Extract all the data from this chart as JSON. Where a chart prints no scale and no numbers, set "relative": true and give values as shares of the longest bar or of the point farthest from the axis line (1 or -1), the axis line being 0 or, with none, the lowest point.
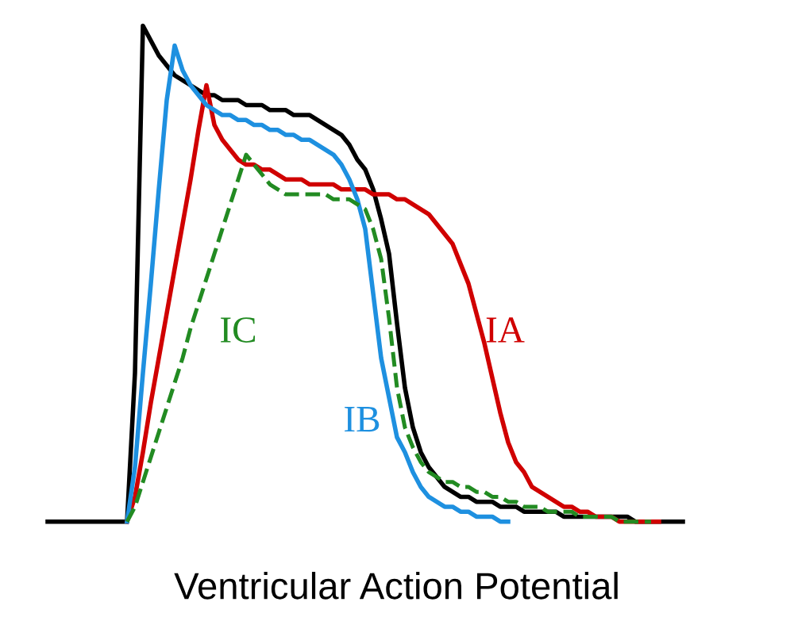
{
  "chart_data": {
    "type": "line",
    "title": "Ventricular Action Potential",
    "relative": true,
    "legend": false,
    "grid": false,
    "marker": "none",
    "categories": [
      null,
      null,
      null,
      null,
      null,
      null,
      null,
      null,
      null,
      null,
      null,
      null,
      null,
      null,
      null,
      null,
      null,
      null,
      null,
      null,
      null,
      null,
      null,
      null,
      null,
      null,
      null,
      null,
      null,
      null,
      null,
      null,
      null,
      null,
      null,
      null,
      null,
      null,
      null,
      null,
      null,
      null,
      null,
      null,
      null,
      null,
      null,
      null,
      null,
      null,
      null,
      null,
      null,
      null,
      null,
      null,
      null,
      null,
      null,
      null,
      null,
      null,
      null,
      null,
      null,
      null,
      null,
      null,
      null,
      null,
      null,
      null,
      null,
      null,
      null,
      null,
      null,
      null,
      null,
      null,
      null
    ],
    "series": [
      {
        "color": "#000000",
        "line_style": "solid",
        "values": [
          0,
          0,
          0,
          0,
          0,
          0,
          0,
          0,
          0,
          0,
          0,
          0.3,
          1.0,
          0.97,
          0.94,
          0.92,
          0.9,
          0.89,
          0.88,
          0.87,
          0.86,
          0.86,
          0.85,
          0.85,
          0.85,
          0.84,
          0.84,
          0.84,
          0.83,
          0.83,
          0.83,
          0.82,
          0.82,
          0.82,
          0.81,
          0.8,
          0.79,
          0.78,
          0.76,
          0.73,
          0.71,
          0.67,
          0.61,
          0.54,
          0.4,
          0.27,
          0.19,
          0.14,
          0.11,
          0.09,
          0.07,
          0.06,
          0.05,
          0.05,
          0.04,
          0.04,
          0.04,
          0.03,
          0.03,
          0.03,
          0.02,
          0.02,
          0.02,
          0.02,
          0.02,
          0.01,
          0.01,
          0.01,
          0.01,
          0.01,
          0.01,
          0.01,
          0.01,
          0.01,
          0,
          0,
          0,
          0,
          0,
          0,
          0
        ]
      },
      {
        "name": "IA",
        "color": "#d00000",
        "line_style": "solid",
        "values": [
          null,
          null,
          null,
          null,
          null,
          null,
          null,
          null,
          null,
          null,
          0,
          0.05,
          0.14,
          0.24,
          0.33,
          0.42,
          0.51,
          0.6,
          0.69,
          0.79,
          0.88,
          0.8,
          0.77,
          0.75,
          0.73,
          0.72,
          0.72,
          0.71,
          0.71,
          0.7,
          0.69,
          0.69,
          0.69,
          0.68,
          0.68,
          0.68,
          0.68,
          0.67,
          0.67,
          0.67,
          0.67,
          0.66,
          0.66,
          0.66,
          0.65,
          0.65,
          0.64,
          0.63,
          0.62,
          0.6,
          0.58,
          0.56,
          0.52,
          0.48,
          0.42,
          0.36,
          0.29,
          0.22,
          0.16,
          0.12,
          0.1,
          0.07,
          0.06,
          0.05,
          0.04,
          0.03,
          0.03,
          0.02,
          0.02,
          0.01,
          0.01,
          0.01,
          0,
          0,
          0,
          0,
          0,
          0,
          null,
          null,
          null
        ]
      },
      {
        "name": "IB",
        "color": "#1e90e0",
        "line_style": "solid",
        "values": [
          null,
          null,
          null,
          null,
          null,
          null,
          null,
          null,
          null,
          null,
          0,
          0.11,
          0.3,
          0.48,
          0.67,
          0.85,
          0.96,
          0.91,
          0.88,
          0.86,
          0.84,
          0.83,
          0.82,
          0.82,
          0.81,
          0.81,
          0.8,
          0.8,
          0.79,
          0.79,
          0.78,
          0.78,
          0.77,
          0.77,
          0.76,
          0.75,
          0.74,
          0.72,
          0.69,
          0.65,
          0.59,
          0.46,
          0.33,
          0.25,
          0.17,
          0.14,
          0.1,
          0.07,
          0.05,
          0.04,
          0.03,
          0.03,
          0.02,
          0.02,
          0.01,
          0.01,
          0.01,
          0,
          0,
          null,
          null,
          null,
          null,
          null,
          null,
          null,
          null,
          null,
          null,
          null,
          null,
          null,
          null,
          null,
          null,
          null,
          null,
          null,
          null,
          null,
          null
        ]
      },
      {
        "name": "IC",
        "color": "#228b22",
        "line_style": "dashed",
        "values": [
          null,
          null,
          null,
          null,
          null,
          null,
          null,
          null,
          null,
          null,
          0,
          0.03,
          0.08,
          0.13,
          0.18,
          0.23,
          0.28,
          0.33,
          0.39,
          0.44,
          0.49,
          0.54,
          0.59,
          0.64,
          0.69,
          0.74,
          0.72,
          0.7,
          0.68,
          0.67,
          0.66,
          0.66,
          0.66,
          0.66,
          0.66,
          0.66,
          0.65,
          0.65,
          0.65,
          0.64,
          0.63,
          0.59,
          0.53,
          0.41,
          0.27,
          0.19,
          0.15,
          0.12,
          0.1,
          0.09,
          0.08,
          0.08,
          0.07,
          0.07,
          0.06,
          0.06,
          0.05,
          0.05,
          0.04,
          0.04,
          0.03,
          0.03,
          0.03,
          0.02,
          0.02,
          0.02,
          0.02,
          0.01,
          0.01,
          0.01,
          0.01,
          0.01,
          0,
          0,
          0,
          0,
          0,
          null,
          null,
          null,
          null
        ]
      }
    ]
  }
}
